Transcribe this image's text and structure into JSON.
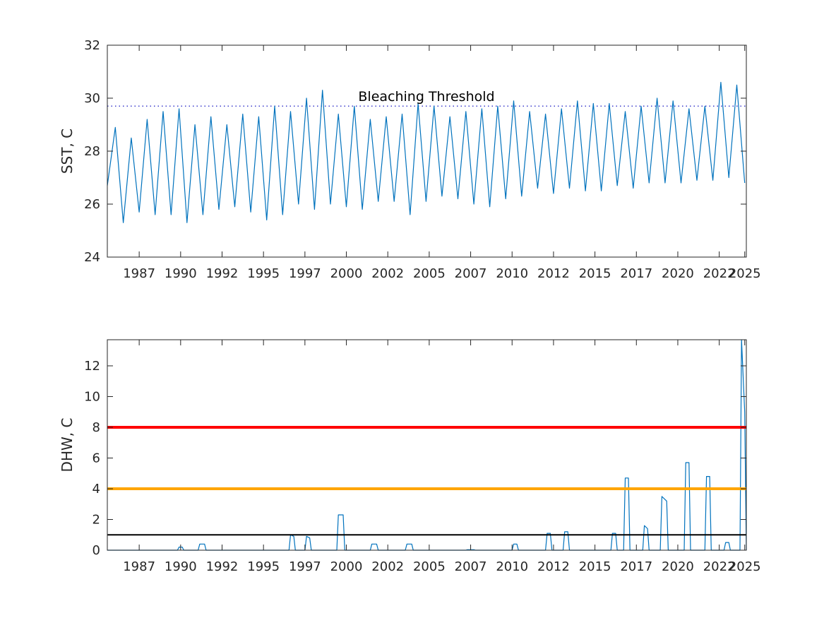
{
  "chart_data": [
    {
      "type": "line",
      "ylabel": "SST, C",
      "xlabel": "",
      "title": "",
      "xlim": [
        1985.0,
        2025.1
      ],
      "ylim": [
        24,
        32
      ],
      "xticks": [
        1987.0,
        1989.6,
        1992.2,
        1994.8,
        1997.4,
        2000.0,
        2002.6,
        2005.2,
        2007.8,
        2010.4,
        2013.0,
        2015.6,
        2018.2,
        2020.8,
        2023.4,
        2025.0
      ],
      "xticklabels": [
        "1987",
        "1990",
        "1992",
        "1995",
        "1997",
        "2000",
        "2002",
        "2005",
        "2007",
        "2010",
        "2012",
        "2015",
        "2017",
        "2020",
        "2022",
        "2025"
      ],
      "yticks": [
        24,
        26,
        28,
        30,
        32
      ],
      "yticklabels": [
        "24",
        "26",
        "28",
        "30",
        "32"
      ],
      "grid": false,
      "series": [
        {
          "color": "#0072bd",
          "x": [
            1985.0,
            1985.5,
            1986.0,
            1986.5,
            1987.0,
            1987.5,
            1988.0,
            1988.5,
            1989.0,
            1989.5,
            1990.0,
            1990.5,
            1991.0,
            1991.5,
            1992.0,
            1992.5,
            1993.0,
            1993.5,
            1994.0,
            1994.5,
            1995.0,
            1995.5,
            1996.0,
            1996.5,
            1997.0,
            1997.5,
            1998.0,
            1998.5,
            1999.0,
            1999.5,
            2000.0,
            2000.5,
            2001.0,
            2001.5,
            2002.0,
            2002.5,
            2003.0,
            2003.5,
            2004.0,
            2004.5,
            2005.0,
            2005.5,
            2006.0,
            2006.5,
            2007.0,
            2007.5,
            2008.0,
            2008.5,
            2009.0,
            2009.5,
            2010.0,
            2010.5,
            2011.0,
            2011.5,
            2012.0,
            2012.5,
            2013.0,
            2013.5,
            2014.0,
            2014.5,
            2015.0,
            2015.5,
            2016.0,
            2016.5,
            2017.0,
            2017.5,
            2018.0,
            2018.5,
            2019.0,
            2019.5,
            2020.0,
            2020.5,
            2021.0,
            2021.5,
            2022.0,
            2022.5,
            2023.0,
            2023.5,
            2024.0,
            2024.5,
            2025.0
          ],
          "y": [
            26.7,
            28.9,
            25.3,
            28.5,
            25.7,
            29.2,
            25.6,
            29.5,
            25.6,
            29.6,
            25.3,
            29.0,
            25.6,
            29.3,
            25.8,
            29.0,
            25.9,
            29.4,
            25.7,
            29.3,
            25.4,
            29.7,
            25.6,
            29.5,
            26.0,
            30.0,
            25.8,
            30.3,
            26.0,
            29.4,
            25.9,
            29.7,
            25.8,
            29.2,
            26.1,
            29.3,
            26.1,
            29.4,
            25.6,
            29.8,
            26.1,
            29.7,
            26.3,
            29.3,
            26.2,
            29.5,
            26.0,
            29.6,
            25.9,
            29.7,
            26.2,
            29.9,
            26.3,
            29.5,
            26.6,
            29.4,
            26.4,
            29.6,
            26.6,
            29.9,
            26.5,
            29.8,
            26.5,
            29.8,
            26.7,
            29.5,
            26.6,
            29.7,
            26.8,
            30.0,
            26.8,
            29.9,
            26.8,
            29.6,
            26.9,
            29.7,
            26.9,
            30.6,
            27.0,
            30.5,
            26.8
          ]
        }
      ],
      "reference_lines": [
        {
          "y": 29.7,
          "style": "dotted",
          "color": "#3d3dcc"
        }
      ],
      "annotations": [
        {
          "text": "Bleaching Threshold",
          "x": 2004.0,
          "y": 29.9
        }
      ]
    },
    {
      "type": "line",
      "ylabel": "DHW, C",
      "xlabel": "",
      "title": "",
      "xlim": [
        1985.0,
        2025.1
      ],
      "ylim": [
        0,
        13.7
      ],
      "xticks": [
        1987.0,
        1989.6,
        1992.2,
        1994.8,
        1997.4,
        2000.0,
        2002.6,
        2005.2,
        2007.8,
        2010.4,
        2013.0,
        2015.6,
        2018.2,
        2020.8,
        2023.4,
        2025.0
      ],
      "xticklabels": [
        "1987",
        "1990",
        "1992",
        "1995",
        "1997",
        "2000",
        "2002",
        "2005",
        "2007",
        "2010",
        "2012",
        "2015",
        "2017",
        "2020",
        "2022",
        "2025"
      ],
      "yticks": [
        0,
        2,
        4,
        6,
        8,
        10,
        12
      ],
      "yticklabels": [
        "0",
        "2",
        "4",
        "6",
        "8",
        "10",
        "12"
      ],
      "grid": false,
      "series": [
        {
          "color": "#0072bd",
          "x": [
            1985.0,
            1989.4,
            1989.5,
            1989.7,
            1989.8,
            1990.7,
            1990.8,
            1991.1,
            1991.2,
            1996.4,
            1996.5,
            1996.7,
            1996.8,
            1997.4,
            1997.5,
            1997.7,
            1997.8,
            1999.4,
            1999.5,
            1999.8,
            1999.9,
            2001.5,
            2001.6,
            2001.9,
            2002.0,
            2003.7,
            2003.8,
            2004.1,
            2004.2,
            2007.5,
            2007.6,
            2008.0,
            2008.1,
            2010.4,
            2010.5,
            2010.7,
            2010.8,
            2012.5,
            2012.6,
            2012.8,
            2012.9,
            2013.6,
            2013.7,
            2013.9,
            2014.0,
            2016.6,
            2016.7,
            2016.9,
            2017.0,
            2017.4,
            2017.5,
            2017.7,
            2017.8,
            2018.6,
            2018.7,
            2018.9,
            2019.0,
            2019.7,
            2019.8,
            2020.1,
            2020.2,
            2021.2,
            2021.3,
            2021.5,
            2021.6,
            2022.5,
            2022.6,
            2022.8,
            2022.9,
            2023.7,
            2023.8,
            2024.0,
            2024.1,
            2024.7,
            2024.8,
            2025.0,
            2025.1
          ],
          "y": [
            0,
            0,
            0.2,
            0.2,
            0,
            0,
            0.4,
            0.4,
            0,
            0,
            1.0,
            0.9,
            0,
            0,
            0.9,
            0.8,
            0,
            0,
            2.3,
            2.3,
            0,
            0,
            0.4,
            0.4,
            0,
            0,
            0.4,
            0.4,
            0,
            0,
            0.03,
            0.03,
            0,
            0,
            0.4,
            0.4,
            0,
            0,
            1.1,
            1.1,
            0,
            0,
            1.2,
            1.2,
            0,
            0,
            1.1,
            1.1,
            0,
            0,
            4.7,
            4.7,
            0,
            0,
            1.6,
            1.4,
            0,
            0,
            3.5,
            3.2,
            0,
            0,
            5.7,
            5.7,
            0,
            0,
            4.8,
            4.8,
            0,
            0,
            0.5,
            0.5,
            0,
            0,
            13.7,
            9.0,
            0
          ]
        }
      ],
      "reference_lines": [
        {
          "y": 8,
          "color": "#ff0000"
        },
        {
          "y": 4,
          "color": "#ffa500"
        },
        {
          "y": 1,
          "color": "#000000"
        }
      ]
    }
  ]
}
